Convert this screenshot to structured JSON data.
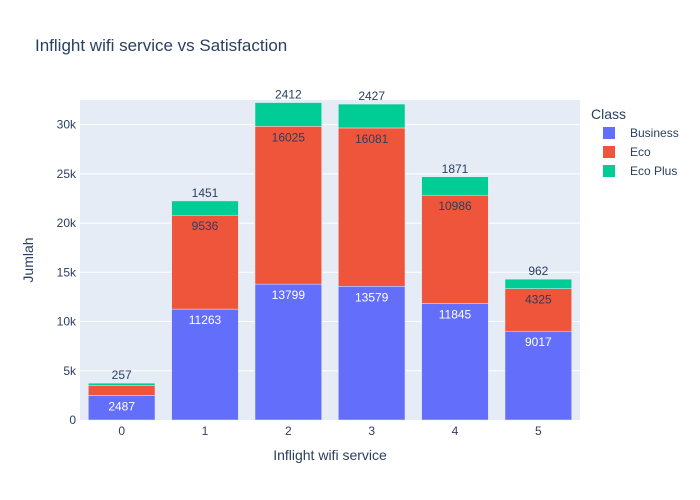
{
  "chart_data": {
    "type": "bar",
    "stacked": true,
    "title": "Inflight wifi service vs Satisfaction",
    "xlabel": "Inflight wifi service",
    "ylabel": "Jumlah",
    "categories": [
      "0",
      "1",
      "2",
      "3",
      "4",
      "5"
    ],
    "ylim": [
      0,
      32500
    ],
    "yticks": [
      0,
      5000,
      10000,
      15000,
      20000,
      25000,
      30000
    ],
    "ytick_labels": [
      "0",
      "5k",
      "10k",
      "15k",
      "20k",
      "25k",
      "30k"
    ],
    "grid": true,
    "legend": {
      "title": "Class",
      "placement": "top-right"
    },
    "series": [
      {
        "name": "Business",
        "color": "#636efa",
        "values": [
          2487,
          11263,
          13799,
          13579,
          11845,
          9017
        ],
        "labels": [
          "2487",
          "11263",
          "13799",
          "13579",
          "11845",
          "9017"
        ]
      },
      {
        "name": "Eco",
        "color": "#ef553b",
        "values": [
          1000,
          9536,
          16025,
          16081,
          10986,
          4325
        ],
        "labels": [
          "",
          "9536",
          "16025",
          "16081",
          "10986",
          "4325"
        ]
      },
      {
        "name": "Eco Plus",
        "color": "#00cc96",
        "values": [
          257,
          1451,
          2412,
          2427,
          1871,
          962
        ],
        "labels": [
          "257",
          "1451",
          "2412",
          "2427",
          "1871",
          "962"
        ]
      }
    ]
  }
}
